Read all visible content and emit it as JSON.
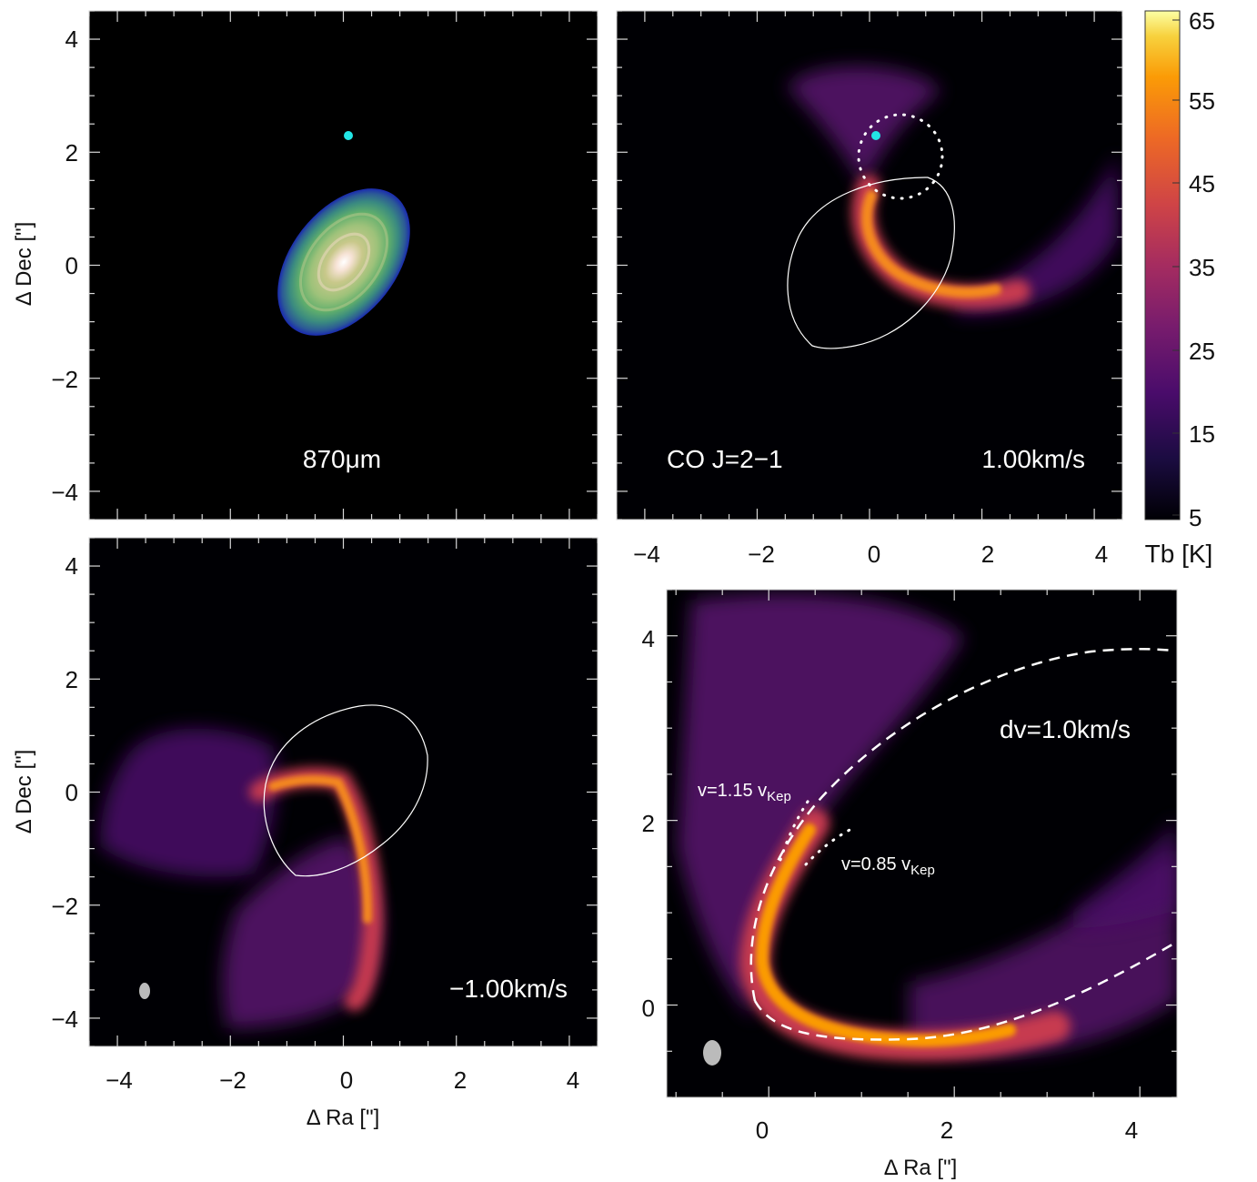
{
  "colors": {
    "background": "#000000",
    "inferno_mid": "#c13a50",
    "inferno_high": "#fcffa4",
    "marker": "#22e6e6",
    "contour": "#ffffff",
    "beam": "#bbbbbb"
  },
  "colorbar": {
    "label": "Tb [K]",
    "ticks": [
      "65",
      "55",
      "45",
      "35",
      "25",
      "15",
      "5"
    ],
    "range": [
      5,
      65
    ],
    "colormap": "inferno"
  },
  "chart_data": [
    {
      "type": "heatmap",
      "panel": "top-left",
      "label": "870μm",
      "ylabel": "Δ Dec [\"]",
      "xlim": [
        -4.5,
        4.5
      ],
      "ylim": [
        -4.5,
        4.5
      ],
      "yticks": [
        "4",
        "2",
        "0",
        "−2",
        "−4"
      ],
      "companion_marker": {
        "x": 0.0,
        "y": 2.3
      },
      "dust_disk": {
        "center": [
          0,
          0
        ],
        "major_axis": 2.9,
        "minor_axis": 1.7,
        "pa_deg": 40
      }
    },
    {
      "type": "heatmap",
      "panel": "top-right",
      "label": "CO J=2−1",
      "velocity": "1.00km/s",
      "xticks": [
        "−4",
        "−2",
        "0",
        "2",
        "4"
      ],
      "xlim": [
        -4.5,
        4.5
      ],
      "ylim": [
        -4.5,
        4.5
      ],
      "companion_marker": {
        "x": 0.0,
        "y": 2.3
      },
      "tb_range": [
        5,
        65
      ]
    },
    {
      "type": "heatmap",
      "panel": "bottom-left",
      "velocity": "−1.00km/s",
      "xlabel": "Δ Ra [\"]",
      "ylabel": "Δ Dec [\"]",
      "xticks": [
        "−4",
        "−2",
        "0",
        "2",
        "4"
      ],
      "yticks": [
        "4",
        "2",
        "0",
        "−2",
        "−4"
      ],
      "xlim": [
        -4.5,
        4.5
      ],
      "ylim": [
        -4.5,
        4.5
      ]
    },
    {
      "type": "heatmap",
      "panel": "bottom-right",
      "label": "dv=1.0km/s",
      "annotations": [
        "v=1.15 v",
        "Kep",
        "v=0.85 v",
        "Kep"
      ],
      "xlabel": "Δ Ra [\"]",
      "xticks": [
        "0",
        "2",
        "4"
      ],
      "yticks": [
        "4",
        "2",
        "0"
      ],
      "xlim": [
        -1.1,
        4.4
      ],
      "ylim": [
        -1.0,
        4.5
      ]
    }
  ]
}
